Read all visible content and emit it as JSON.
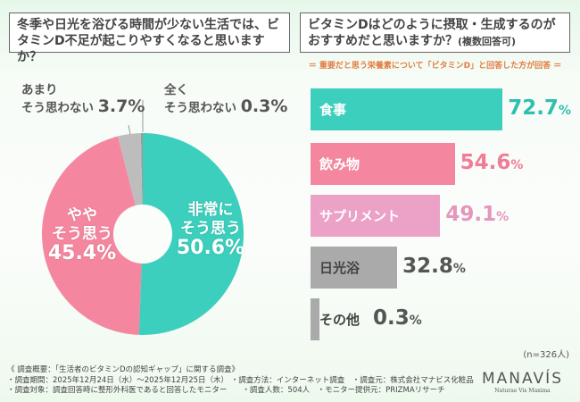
{
  "left_question": "冬季や日光を浴びる時間が少ない生活では、ビタミンD不足が起こりやすくなると思いますか？",
  "right_question_main": "ビタミンDはどのように摂取・生成するのがおすすめだと思いますか？",
  "right_question_note": "(複数回答可)",
  "subnote": "＝ 重要だと思う栄養素について「ビタミンD」と回答した方が回答 ＝",
  "chart_data": [
    {
      "type": "pie",
      "donut": true,
      "slices": [
        {
          "label": "非常にそう思う",
          "value": 50.6,
          "color": "#3ccfbd"
        },
        {
          "label": "ややそう思う",
          "value": 45.4,
          "color": "#f4879f"
        },
        {
          "label": "あまりそう思わない",
          "value": 3.7,
          "color": "#bdbdbd"
        },
        {
          "label": "全くそう思わない",
          "value": 0.3,
          "color": "#9a9a9a"
        }
      ],
      "labels": {
        "s0a": "非常に",
        "s0b": "そう思う",
        "s0v": "50.6%",
        "s1a": "やや",
        "s1b": "そう思う",
        "s1v": "45.4%",
        "s2a": "あまり",
        "s2b": "そう思わない",
        "s2v": "3.7%",
        "s3a": "全く",
        "s3b": "そう思わない",
        "s3v": "0.3%"
      }
    },
    {
      "type": "bar",
      "orientation": "horizontal",
      "unit": "%",
      "n_label": "(n=326人)",
      "categories": [
        "食事",
        "飲み物",
        "サプリメント",
        "日光浴",
        "その他"
      ],
      "values": [
        72.7,
        54.6,
        49.1,
        32.8,
        0.3
      ],
      "colors": [
        "#3ccfbd",
        "#f4879f",
        "#eba2c6",
        "#aaaaaa",
        "#aaaaaa"
      ],
      "value_colors": [
        "#2fbfae",
        "#f07c97",
        "#e596bd",
        "#555555",
        "#555555"
      ],
      "xlim": [
        0,
        100
      ]
    }
  ],
  "footer": {
    "l1": "《 調査概要：「生活者のビタミンDの認知ギャップ」に関する調査》",
    "l2": "・調査期間：2025年12月24日（水）～2025年12月25日（木） ・調査方法：インターネット調査　・調査元：株式会社マナビス化粧品",
    "l3": "・調査対象：調査回答時に整形外科医であると回答したモニター　　・調査人数：504人　・モニター提供元：PRIZMAリサーチ"
  },
  "logo": {
    "name": "MANAVÍS",
    "tagline": "Naturae Vis Maxima"
  }
}
